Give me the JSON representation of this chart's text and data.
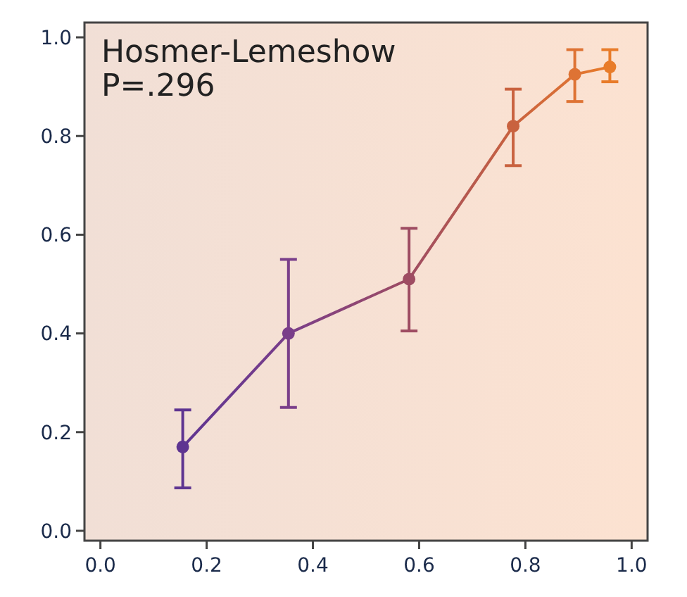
{
  "chart_data": {
    "type": "line",
    "annotations": [
      "Hosmer-Lemeshow",
      "P=.296"
    ],
    "x": [
      0.155,
      0.354,
      0.581,
      0.777,
      0.893,
      0.959
    ],
    "series": [
      {
        "values": [
          0.17,
          0.4,
          0.51,
          0.82,
          0.925,
          0.94
        ],
        "colors": [
          "#5e3491",
          "#7a3e8a",
          "#9e4c62",
          "#c9623f",
          "#de7334",
          "#e87c2a"
        ],
        "errors": [
          [
            0.087,
            0.245
          ],
          [
            0.25,
            0.55
          ],
          [
            0.405,
            0.613
          ],
          [
            0.74,
            0.895
          ],
          [
            0.87,
            0.975
          ],
          [
            0.91,
            0.975
          ]
        ]
      }
    ],
    "xlim": [
      -0.03,
      1.03
    ],
    "ylim": [
      -0.02,
      1.03
    ],
    "xticks": [
      {
        "value": 0,
        "label": "0.0"
      },
      0.2,
      0.4,
      0.6,
      0.8,
      {
        "value": 1,
        "label": "1.0"
      }
    ],
    "yticks": [
      {
        "value": 0,
        "label": "0.0"
      },
      0.2,
      0.4,
      0.6,
      0.8,
      {
        "value": 1,
        "label": "1.0"
      }
    ],
    "marker": "circle",
    "grid": false
  }
}
